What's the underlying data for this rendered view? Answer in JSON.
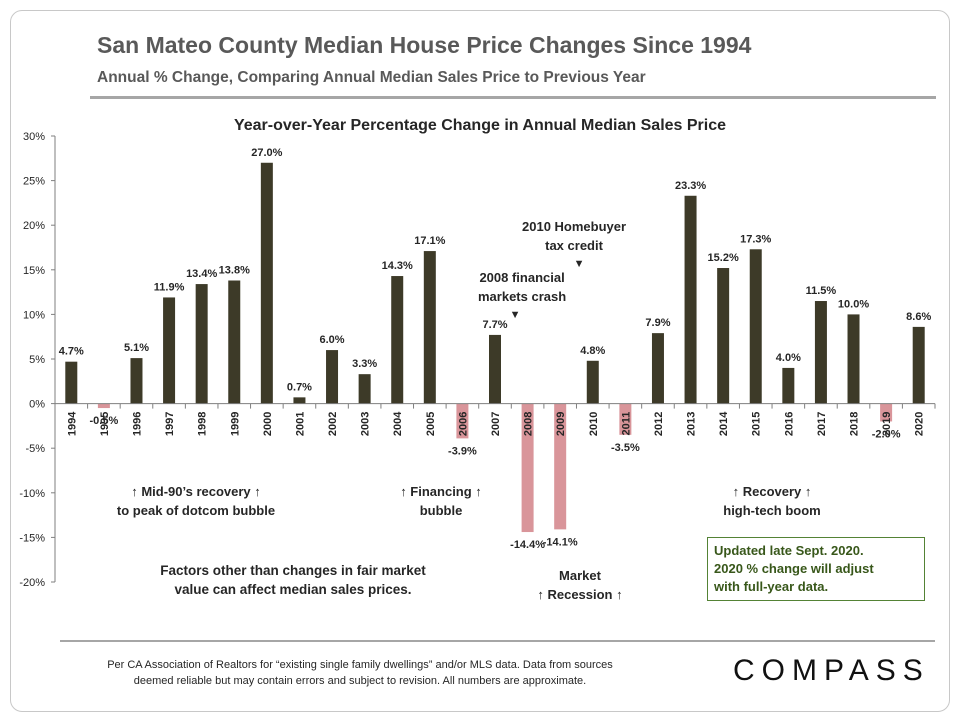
{
  "title": "San Mateo County Median House Price Changes Since 1994",
  "subtitle": "Annual % Change, Comparing Annual Median Sales Price to Previous Year",
  "colors": {
    "positive": "#3d3a28",
    "negative": "#d9959a",
    "accent_note": "#548235"
  },
  "chart_data": {
    "type": "bar",
    "title": "Year-over-Year Percentage Change in Annual Median Sales Price",
    "categories": [
      "1994",
      "1995",
      "1996",
      "1997",
      "1998",
      "1999",
      "2000",
      "2001",
      "2002",
      "2003",
      "2004",
      "2005",
      "2006",
      "2007",
      "2008",
      "2009",
      "2010",
      "2011",
      "2012",
      "2013",
      "2014",
      "2015",
      "2016",
      "2017",
      "2018",
      "2019",
      "2020"
    ],
    "values": [
      4.7,
      -0.5,
      5.1,
      11.9,
      13.4,
      13.8,
      27.0,
      0.7,
      6.0,
      3.3,
      14.3,
      17.1,
      -3.9,
      7.7,
      -14.4,
      -14.1,
      4.8,
      -3.5,
      7.9,
      23.3,
      15.2,
      17.3,
      4.0,
      11.5,
      10.0,
      -2.0,
      8.6
    ],
    "labels": [
      "4.7%",
      "-0.5%",
      "5.1%",
      "11.9%",
      "13.4%",
      "13.8%",
      "27.0%",
      "0.7%",
      "6.0%",
      "3.3%",
      "14.3%",
      "17.1%",
      "-3.9%",
      "7.7%",
      "-14.4%",
      "-14.1%",
      "4.8%",
      "-3.5%",
      "7.9%",
      "23.3%",
      "15.2%",
      "17.3%",
      "4.0%",
      "11.5%",
      "10.0%",
      "-2.0%",
      "8.6%"
    ],
    "yticks": [
      "30%",
      "25%",
      "20%",
      "15%",
      "10%",
      "5%",
      "0%",
      "-5%",
      "-10%",
      "-15%",
      "-20%"
    ],
    "ylim": [
      -20,
      30
    ],
    "ylabel": "",
    "xlabel": "",
    "grid": false
  },
  "annotations": {
    "homebuyer": "2010 Homebuyer tax credit",
    "homebuyer_l1": "2010 Homebuyer",
    "homebuyer_l2": "tax credit",
    "homebuyer_arrow": "▼",
    "crash_l1": "2008 financial",
    "crash_l2": "markets crash",
    "crash_arrow": "▼",
    "recovery90_l1": "↑  Mid-90’s recovery ↑",
    "recovery90_l2": "to peak of dotcom bubble",
    "financing_l1": "↑  Financing ↑",
    "financing_l2": "bubble",
    "recession_l1": "Market",
    "recession_l2": "↑  Recession ↑",
    "recovery_l1": "↑      Recovery     ↑",
    "recovery_l2": "high-tech boom",
    "factors_l1": "Factors other than changes in fair market",
    "factors_l2": "value can affect median sales prices."
  },
  "note": {
    "l1": "Updated late Sept. 2020.",
    "l2": "2020 % change will adjust",
    "l3": "with full-year data."
  },
  "footer": {
    "l1": "Per CA Association  of Realtors for “existing single family dwellings” and/or MLS data. Data from sources",
    "l2": "deemed reliable but may contain errors and subject to revision. All numbers are approximate."
  },
  "logo": "COMPASS"
}
